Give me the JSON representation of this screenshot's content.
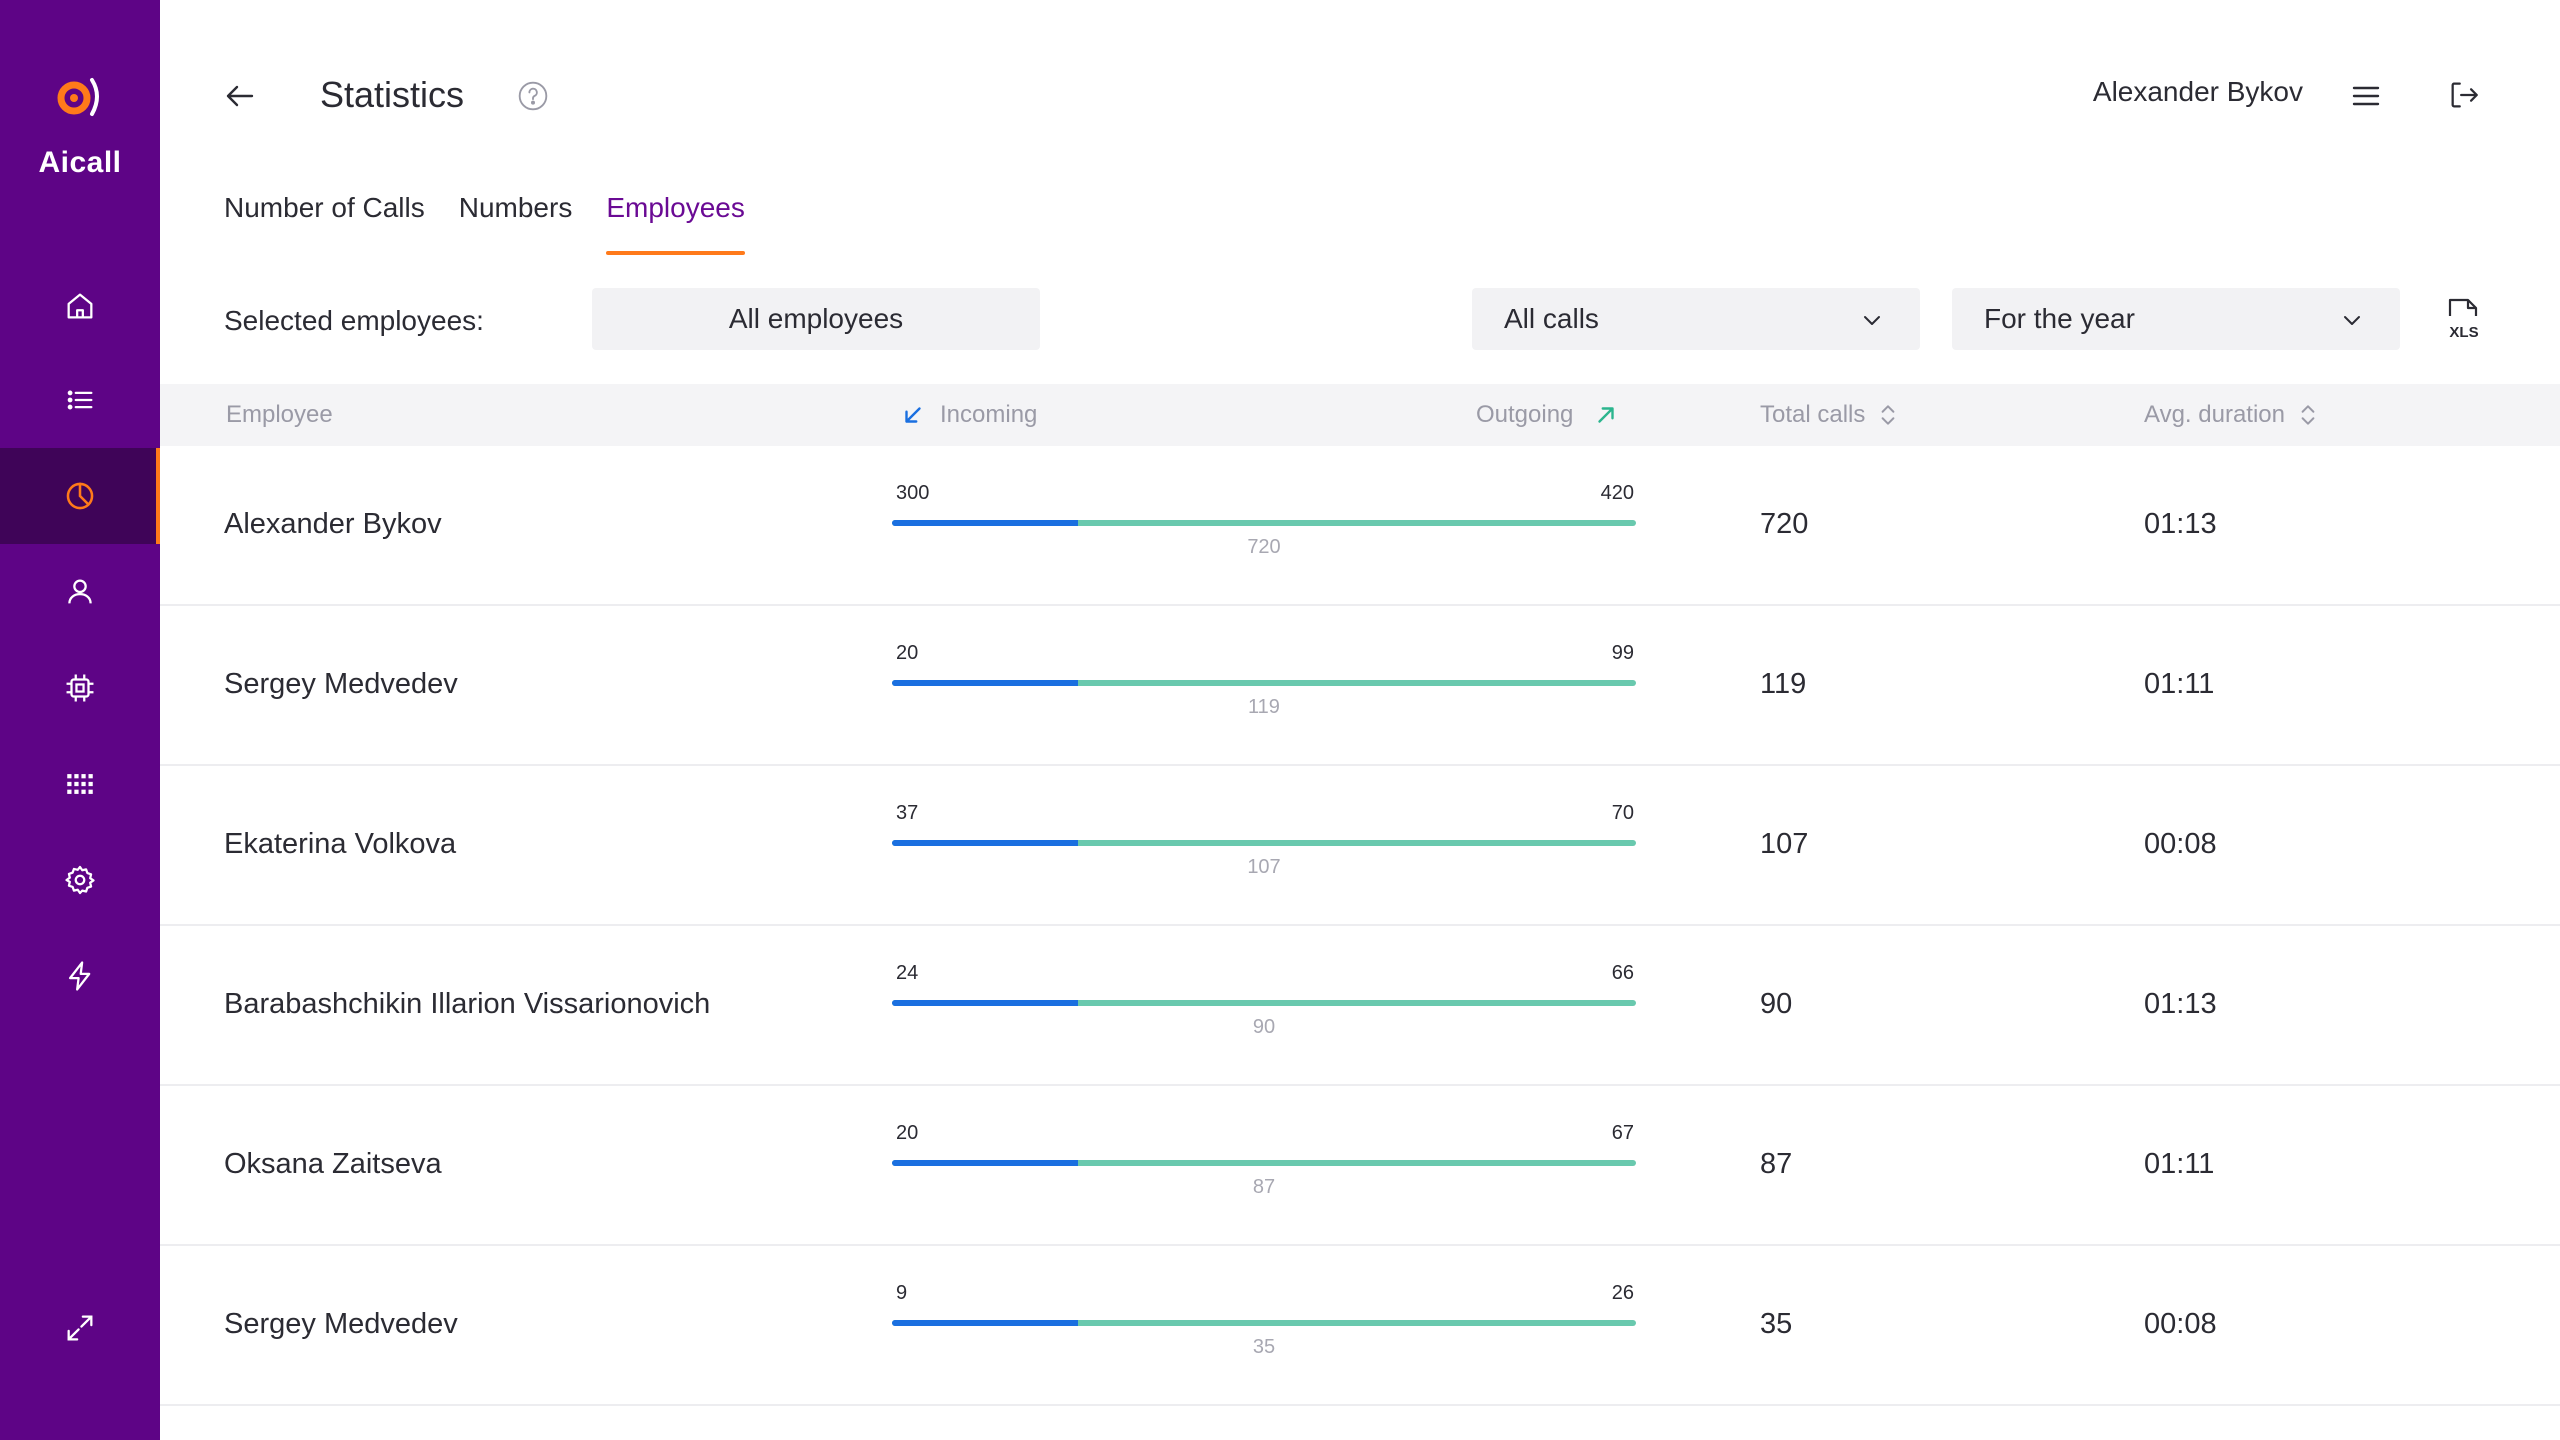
{
  "app": {
    "logo_text": "Aicall"
  },
  "colors": {
    "sidebar": "#5e0486",
    "sidebar_active": "#3f0458",
    "accent_orange": "#ff7a1a",
    "tab_active": "#6a0a94",
    "incoming": "#1a6fe0",
    "outgoing": "#69c9ae"
  },
  "sidebar": {
    "items": [
      {
        "icon": "home-icon",
        "active": false
      },
      {
        "icon": "list-icon",
        "active": false
      },
      {
        "icon": "pie-chart-icon",
        "active": true
      },
      {
        "icon": "user-icon",
        "active": false
      },
      {
        "icon": "chip-icon",
        "active": false
      },
      {
        "icon": "dialpad-icon",
        "active": false
      },
      {
        "icon": "gear-icon",
        "active": false
      },
      {
        "icon": "lightning-icon",
        "active": false
      }
    ],
    "expand_icon": "expand-icon"
  },
  "header": {
    "title": "Statistics",
    "user_name": "Alexander Bykov"
  },
  "tabs": [
    {
      "label": "Number of Calls",
      "active": false
    },
    {
      "label": "Numbers",
      "active": false
    },
    {
      "label": "Employees",
      "active": true
    }
  ],
  "filters": {
    "selected_label": "Selected employees:",
    "employees_button": "All employees",
    "calls_dropdown": "All calls",
    "period_dropdown": "For the year",
    "export_label": "XLS"
  },
  "table": {
    "headers": {
      "employee": "Employee",
      "incoming": "Incoming",
      "outgoing": "Outgoing",
      "total": "Total calls",
      "duration": "Avg. duration"
    },
    "rows": [
      {
        "name": "Alexander Bykov",
        "incoming": "300",
        "outgoing": "420",
        "total_bar": "720",
        "total": "720",
        "duration": "01:13"
      },
      {
        "name": "Sergey Medvedev",
        "incoming": "20",
        "outgoing": "99",
        "total_bar": "119",
        "total": "119",
        "duration": "01:11"
      },
      {
        "name": "Ekaterina Volkova",
        "incoming": "37",
        "outgoing": "70",
        "total_bar": "107",
        "total": "107",
        "duration": "00:08"
      },
      {
        "name": "Barabashchikin Illarion Vissarionovich",
        "incoming": "24",
        "outgoing": "66",
        "total_bar": "90",
        "total": "90",
        "duration": "01:13"
      },
      {
        "name": "Oksana Zaitseva",
        "incoming": "20",
        "outgoing": "67",
        "total_bar": "87",
        "total": "87",
        "duration": "01:11"
      },
      {
        "name": "Sergey Medvedev",
        "incoming": "9",
        "outgoing": "26",
        "total_bar": "35",
        "total": "35",
        "duration": "00:08"
      }
    ]
  }
}
